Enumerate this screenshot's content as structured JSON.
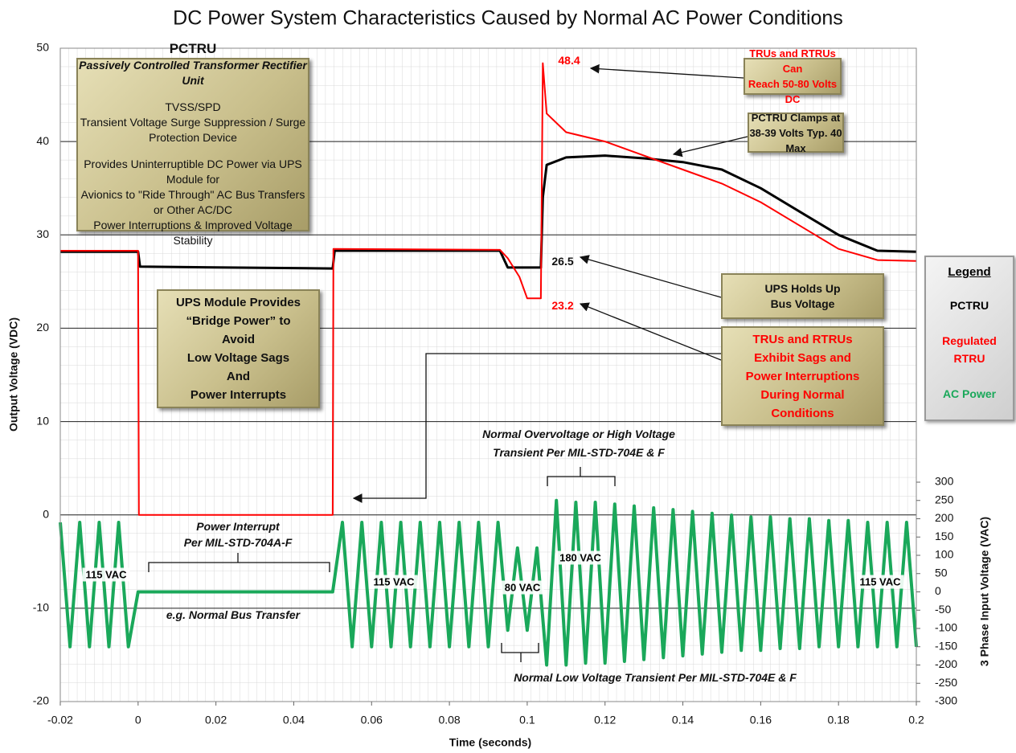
{
  "chart_data": {
    "type": "line",
    "title": "DC Power System Characteristics Caused by Normal AC Power Conditions",
    "x_label": "Time (seconds)",
    "y_label": "Output Voltage (VDC)",
    "y2_label": "3 Phase Input Voltage (VAC)",
    "xlim": [
      -0.02,
      0.2
    ],
    "ylim": [
      -20,
      50
    ],
    "y2lim": [
      -300,
      300
    ],
    "xticks": [
      -0.02,
      0,
      0.02,
      0.04,
      0.06,
      0.08,
      0.1,
      0.12,
      0.14,
      0.16,
      0.18,
      0.2
    ],
    "yticks": [
      -20,
      -10,
      0,
      10,
      20,
      30,
      40,
      50
    ],
    "y2ticks": [
      -300,
      -250,
      -200,
      -150,
      -100,
      -50,
      0,
      50,
      100,
      150,
      200,
      250,
      300
    ],
    "grid": true,
    "legend_title": "Legend",
    "series": [
      {
        "name": "PCTRU",
        "color": "#000000",
        "x": [
          -0.02,
          0,
          0.0005,
          0.05,
          0.0505,
          0.093,
          0.095,
          0.1035,
          0.104,
          0.105,
          0.11,
          0.12,
          0.13,
          0.14,
          0.15,
          0.16,
          0.17,
          0.18,
          0.19,
          0.2
        ],
        "values": [
          28.2,
          28.2,
          26.6,
          26.4,
          28.3,
          28.3,
          26.5,
          26.5,
          34,
          37.5,
          38.3,
          38.5,
          38.2,
          37.8,
          37,
          35,
          32.5,
          30,
          28.3,
          28.2
        ]
      },
      {
        "name": "Regulated RTRU",
        "color": "#ff0000",
        "x": [
          -0.02,
          0,
          0.0002,
          0.05,
          0.0502,
          0.093,
          0.095,
          0.098,
          0.1,
          0.1035,
          0.104,
          0.105,
          0.11,
          0.12,
          0.13,
          0.14,
          0.15,
          0.16,
          0.17,
          0.18,
          0.19,
          0.2
        ],
        "values": [
          28.3,
          28.3,
          0,
          0,
          28.5,
          28.4,
          27.5,
          25.5,
          23.2,
          23.2,
          48.4,
          43,
          41,
          40,
          38.5,
          37,
          35.5,
          33.5,
          31,
          28.5,
          27.3,
          27.2
        ]
      },
      {
        "name": "AC Power",
        "color": "#1aa85a",
        "axis": "y2",
        "x": [
          -0.02,
          -0.0175,
          -0.015,
          -0.0125,
          -0.01,
          -0.0075,
          -0.005,
          -0.0025,
          0,
          0.05,
          0.0525,
          0.055,
          0.0575,
          0.06,
          0.0625,
          0.065,
          0.0675,
          0.07,
          0.0725,
          0.075,
          0.0775,
          0.08,
          0.0825,
          0.085,
          0.0875,
          0.09,
          0.0925,
          0.095,
          0.0975,
          0.1,
          0.1025,
          0.105,
          0.1075,
          0.11,
          0.1125,
          0.115,
          0.1175,
          0.12,
          0.1225,
          0.125,
          0.1275,
          0.13,
          0.1325,
          0.135,
          0.1375,
          0.14,
          0.1425,
          0.145,
          0.1475,
          0.15,
          0.1525,
          0.155,
          0.1575,
          0.16,
          0.1625,
          0.165,
          0.1675,
          0.17,
          0.1725,
          0.175,
          0.1775,
          0.18,
          0.1825,
          0.185,
          0.1875,
          0.19,
          0.1925,
          0.195,
          0.1975,
          0.2
        ],
        "values": [
          190,
          -150,
          190,
          -150,
          190,
          -150,
          190,
          -150,
          0,
          0,
          190,
          -150,
          190,
          -150,
          190,
          -150,
          190,
          -150,
          190,
          -150,
          190,
          -150,
          190,
          -150,
          190,
          -150,
          190,
          -105,
          120,
          -105,
          120,
          -200,
          250,
          -200,
          245,
          -195,
          245,
          -195,
          240,
          -190,
          235,
          -185,
          230,
          -180,
          225,
          -175,
          220,
          -170,
          215,
          -165,
          210,
          -160,
          205,
          -160,
          205,
          -155,
          200,
          -155,
          200,
          -150,
          195,
          -150,
          195,
          -150,
          190,
          -150,
          190,
          -150,
          190,
          -150
        ]
      }
    ],
    "boxes": [
      {
        "color": "#111111",
        "lines": [
          "PCTRU",
          "Passively Controlled Transformer Rectifier Unit",
          "TVSS/SPD",
          "Transient Voltage Surge Suppression / Surge Protection Device",
          "Provides Uninterruptible DC Power via UPS Module for",
          "Avionics to \"Ride Through\" AC Bus Transfers or Other AC/DC",
          "Power Interruptions & Improved Voltage Stability"
        ]
      },
      {
        "color": "#111111",
        "lines": [
          "UPS Module Provides",
          "“Bridge Power” to",
          "Avoid",
          "Low Voltage Sags",
          "And",
          "Power Interrupts"
        ]
      },
      {
        "color": "#ff0000",
        "lines": [
          "TRUs and RTRUs Can",
          "Reach 50-80 Volts DC"
        ]
      },
      {
        "color": "#111111",
        "lines": [
          "PCTRU Clamps at",
          "38-39 Volts Typ. 40 Max"
        ]
      },
      {
        "color": "#111111",
        "lines": [
          "UPS Holds Up",
          "Bus Voltage"
        ]
      },
      {
        "color": "#ff0000",
        "lines": [
          "TRUs and RTRUs",
          "Exhibit Sags and",
          "Power Interruptions",
          "During Normal",
          "Conditions"
        ]
      }
    ],
    "notes": [
      {
        "text": "48.4",
        "color": "#ff0000"
      },
      {
        "text": "26.5",
        "color": "#111111"
      },
      {
        "text": "23.2",
        "color": "#ff0000"
      },
      {
        "text": "Normal Overvoltage or High Voltage",
        "color": "#111111"
      },
      {
        "text": "Transient Per MIL-STD-704E & F",
        "color": "#111111"
      },
      {
        "text": "Power Interrupt",
        "color": "#111111"
      },
      {
        "text": "Per MIL-STD-704A-F",
        "color": "#111111"
      },
      {
        "text": "e.g. Normal Bus Transfer",
        "color": "#111111"
      },
      {
        "text": "Normal Low Voltage Transient Per MIL-STD-704E & F",
        "color": "#111111"
      }
    ],
    "vac_labels": [
      "115 VAC",
      "115 VAC",
      "80 VAC",
      "180 VAC",
      "115 VAC"
    ]
  }
}
